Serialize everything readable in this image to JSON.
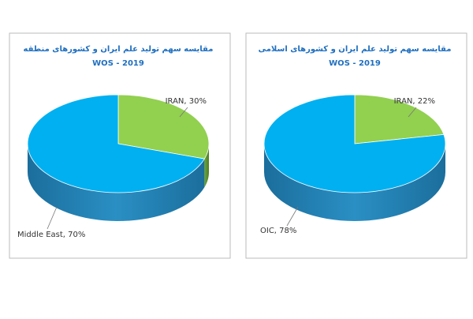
{
  "chart_data": [
    {
      "type": "pie",
      "title": "مقایسه سهم تولید علم ایران و کشورهای منطقه",
      "subtitle": "WOS - 2019",
      "values": [
        30,
        70
      ],
      "value_labels": [
        "IRAN, 30%",
        "Middle East, 70%"
      ],
      "colors": [
        "#92d050",
        "#00b0f0"
      ]
    },
    {
      "type": "pie",
      "title": "مقایسه سهم تولید علم ایران و کشورهای اسلامی",
      "subtitle": "WOS - 2019",
      "values": [
        22,
        78
      ],
      "value_labels": [
        "IRAN, 22%",
        "OIC, 78%"
      ],
      "colors": [
        "#92d050",
        "#00b0f0"
      ]
    }
  ]
}
